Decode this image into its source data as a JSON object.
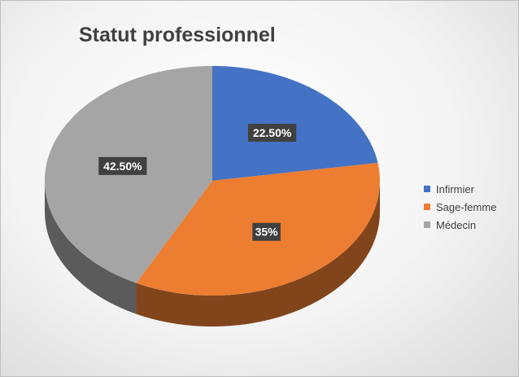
{
  "chart_data": {
    "type": "pie",
    "title": "Statut professionnel",
    "categories": [
      "Infirmier",
      "Sage-femme",
      "Médecin"
    ],
    "values": [
      22.5,
      35,
      42.5
    ],
    "data_labels": [
      "22.50%",
      "35%",
      "42.50%"
    ],
    "colors": [
      "#4472c4",
      "#ed7d31",
      "#a5a5a5"
    ],
    "legend_position": "right",
    "style": "3d"
  }
}
